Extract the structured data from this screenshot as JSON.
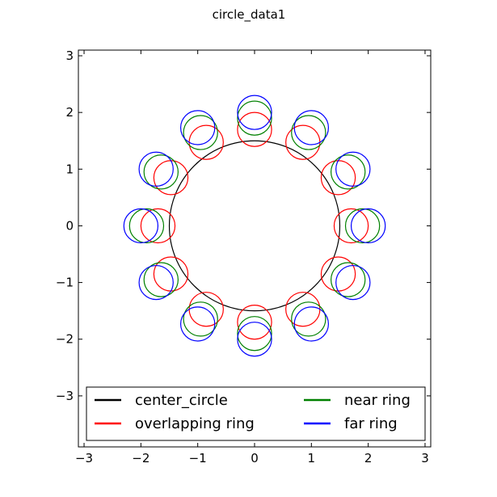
{
  "figure": {
    "title": "circle_data1"
  },
  "chart_data": {
    "type": "line",
    "title": "circle_data1",
    "xlabel": "",
    "ylabel": "",
    "xlim": [
      -3.1,
      3.1
    ],
    "ylim": [
      -3.9,
      3.1
    ],
    "xticks": [
      -3,
      -2,
      -1,
      0,
      1,
      2,
      3
    ],
    "yticks": [
      -3,
      -2,
      -1,
      0,
      1,
      2,
      3
    ],
    "xtick_labels": [
      "−3",
      "−2",
      "−1",
      "0",
      "1",
      "2",
      "3"
    ],
    "ytick_labels": [
      "−3",
      "−2",
      "−1",
      "0",
      "1",
      "2",
      "3"
    ],
    "grid": false,
    "legend_position": "lower center",
    "legend_columns": 2,
    "series": [
      {
        "name": "center_circle",
        "color": "#000000",
        "circles": [
          {
            "cx": 0,
            "cy": 0,
            "r": 1.5
          }
        ]
      },
      {
        "name": "overlapping ring",
        "color": "#ff0000",
        "ring_radius": 1.7,
        "circle_radius": 0.3,
        "count": 12,
        "angle_step_deg": 30
      },
      {
        "name": "near ring",
        "color": "#008000",
        "ring_radius": 1.9,
        "circle_radius": 0.3,
        "count": 12,
        "angle_step_deg": 30
      },
      {
        "name": "far ring",
        "color": "#0000ff",
        "ring_radius": 2.0,
        "circle_radius": 0.3,
        "count": 12,
        "angle_step_deg": 30
      }
    ]
  }
}
